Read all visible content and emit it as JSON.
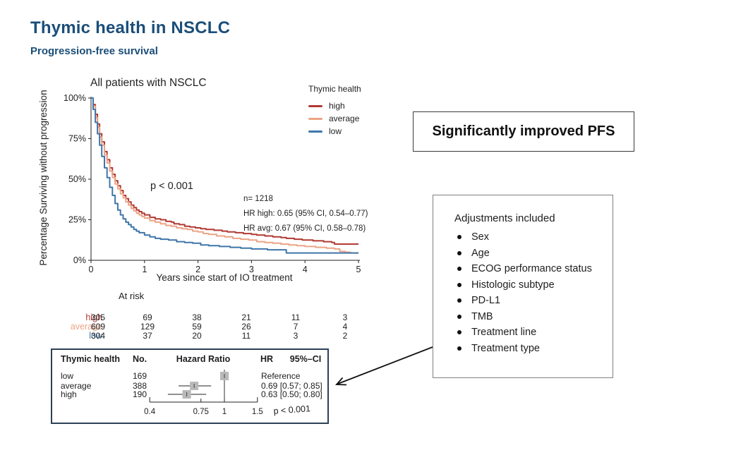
{
  "header": {
    "title": "Thymic health in NSCLC",
    "subtitle": "Progression-free survival"
  },
  "colors": {
    "heading_blue": "#1b4e79",
    "high": "#b13a33",
    "average": "#eca486",
    "low": "#3e76aa",
    "forest_border": "#2e4057"
  },
  "callouts": {
    "pfs_box": "Significantly improved PFS",
    "adjustments": {
      "title": "Adjustments included",
      "items": [
        "Sex",
        "Age",
        "ECOG performance status",
        "Histologic subtype",
        "PD-L1",
        "TMB",
        "Treatment line",
        "Treatment type"
      ]
    }
  },
  "at_risk": {
    "title": "At risk",
    "rows": [
      {
        "label": "high",
        "color": "#b13a33",
        "counts": [
          305,
          69,
          38,
          21,
          11,
          3
        ]
      },
      {
        "label": "average",
        "color": "#eca486",
        "counts": [
          609,
          129,
          59,
          26,
          7,
          4
        ]
      },
      {
        "label": "low",
        "color": "#3e76aa",
        "counts": [
          304,
          37,
          20,
          11,
          3,
          2
        ]
      }
    ]
  },
  "chart_data": [
    {
      "type": "line",
      "subtype": "kaplan-meier-step",
      "title": "All patients with NSCLC",
      "xlabel": "Years since start of IO treatment",
      "ylabel": "Percentage Surviving without progression",
      "xlim": [
        0,
        5
      ],
      "ylim": [
        0,
        100
      ],
      "grid": false,
      "x_ticks": [
        0,
        1,
        2,
        3,
        4,
        5
      ],
      "x_tick_labels": [
        "0",
        "1",
        "2",
        "3",
        "4",
        "5"
      ],
      "y_ticks": [
        0,
        25,
        50,
        75,
        100
      ],
      "y_tick_labels": [
        "0%",
        "25%",
        "50%",
        "75%",
        "100%"
      ],
      "legend_title": "Thymic health",
      "legend_position": "upper right, outside plot",
      "annotations": {
        "p_value": "p < 0.001",
        "n": "n= 1218",
        "hr_high": "HR high: 0.65 (95% CI, 0.54–0.77)",
        "hr_avg": "HR avg: 0.67 (95% CI, 0.58–0.78)"
      },
      "series": [
        {
          "name": "high",
          "color": "#b13a33",
          "points": [
            [
              0,
              100
            ],
            [
              0.04,
              96
            ],
            [
              0.08,
              90
            ],
            [
              0.12,
              84
            ],
            [
              0.16,
              78
            ],
            [
              0.2,
              73
            ],
            [
              0.25,
              67
            ],
            [
              0.3,
              62
            ],
            [
              0.35,
              57
            ],
            [
              0.4,
              53
            ],
            [
              0.45,
              49
            ],
            [
              0.5,
              46
            ],
            [
              0.55,
              43
            ],
            [
              0.6,
              40
            ],
            [
              0.65,
              38
            ],
            [
              0.7,
              36
            ],
            [
              0.75,
              34
            ],
            [
              0.8,
              32.5
            ],
            [
              0.85,
              31
            ],
            [
              0.9,
              30
            ],
            [
              0.95,
              29
            ],
            [
              1.0,
              28
            ],
            [
              1.1,
              26.5
            ],
            [
              1.2,
              25.5
            ],
            [
              1.3,
              25
            ],
            [
              1.4,
              24
            ],
            [
              1.5,
              23.5
            ],
            [
              1.55,
              22.5
            ],
            [
              1.65,
              22
            ],
            [
              1.75,
              21
            ],
            [
              1.85,
              20.5
            ],
            [
              1.95,
              20
            ],
            [
              2.05,
              19.5
            ],
            [
              2.15,
              19
            ],
            [
              2.3,
              18.5
            ],
            [
              2.45,
              18
            ],
            [
              2.55,
              17.5
            ],
            [
              2.7,
              17
            ],
            [
              2.85,
              16.5
            ],
            [
              3.0,
              16
            ],
            [
              3.1,
              15.5
            ],
            [
              3.25,
              15
            ],
            [
              3.4,
              14.5
            ],
            [
              3.55,
              14
            ],
            [
              3.65,
              13.5
            ],
            [
              3.8,
              13
            ],
            [
              3.95,
              12.5
            ],
            [
              4.15,
              12
            ],
            [
              4.35,
              11.5
            ],
            [
              4.5,
              11
            ],
            [
              4.55,
              10
            ],
            [
              5.0,
              10
            ]
          ]
        },
        {
          "name": "average",
          "color": "#eca486",
          "points": [
            [
              0,
              100
            ],
            [
              0.04,
              95
            ],
            [
              0.08,
              88
            ],
            [
              0.12,
              82
            ],
            [
              0.16,
              76
            ],
            [
              0.2,
              71
            ],
            [
              0.25,
              65
            ],
            [
              0.3,
              60
            ],
            [
              0.35,
              55
            ],
            [
              0.4,
              51
            ],
            [
              0.45,
              47
            ],
            [
              0.5,
              44
            ],
            [
              0.55,
              41
            ],
            [
              0.6,
              38.5
            ],
            [
              0.65,
              36
            ],
            [
              0.7,
              34
            ],
            [
              0.75,
              32
            ],
            [
              0.8,
              30.5
            ],
            [
              0.85,
              29
            ],
            [
              0.9,
              28
            ],
            [
              0.95,
              27
            ],
            [
              1.0,
              26
            ],
            [
              1.1,
              24.5
            ],
            [
              1.2,
              23.5
            ],
            [
              1.3,
              22.5
            ],
            [
              1.4,
              21.5
            ],
            [
              1.5,
              21
            ],
            [
              1.6,
              20
            ],
            [
              1.7,
              19.5
            ],
            [
              1.8,
              19
            ],
            [
              1.9,
              18
            ],
            [
              2.0,
              17.5
            ],
            [
              2.1,
              16.5
            ],
            [
              2.2,
              16
            ],
            [
              2.35,
              15
            ],
            [
              2.5,
              14.5
            ],
            [
              2.65,
              13.5
            ],
            [
              2.8,
              13
            ],
            [
              2.95,
              12.5
            ],
            [
              3.1,
              11.5
            ],
            [
              3.25,
              11
            ],
            [
              3.4,
              10.5
            ],
            [
              3.55,
              10
            ],
            [
              3.7,
              9.5
            ],
            [
              3.85,
              9
            ],
            [
              4.0,
              8.5
            ],
            [
              4.2,
              8
            ],
            [
              4.4,
              7.5
            ],
            [
              4.55,
              7
            ],
            [
              4.65,
              5.5
            ],
            [
              4.75,
              5
            ],
            [
              4.85,
              4.5
            ],
            [
              5.0,
              4.5
            ]
          ]
        },
        {
          "name": "low",
          "color": "#3e76aa",
          "points": [
            [
              0,
              100
            ],
            [
              0.04,
              93
            ],
            [
              0.08,
              85
            ],
            [
              0.12,
              78
            ],
            [
              0.16,
              71
            ],
            [
              0.2,
              64
            ],
            [
              0.25,
              57
            ],
            [
              0.3,
              51
            ],
            [
              0.35,
              45
            ],
            [
              0.4,
              40
            ],
            [
              0.45,
              35
            ],
            [
              0.5,
              31
            ],
            [
              0.55,
              28
            ],
            [
              0.6,
              25.5
            ],
            [
              0.65,
              23.5
            ],
            [
              0.7,
              22
            ],
            [
              0.75,
              20.5
            ],
            [
              0.8,
              19
            ],
            [
              0.85,
              18
            ],
            [
              0.9,
              17
            ],
            [
              1.0,
              15.5
            ],
            [
              1.1,
              14.5
            ],
            [
              1.2,
              13.5
            ],
            [
              1.3,
              13
            ],
            [
              1.45,
              12.5
            ],
            [
              1.6,
              11.5
            ],
            [
              1.75,
              11
            ],
            [
              1.9,
              10.5
            ],
            [
              2.05,
              9.5
            ],
            [
              2.2,
              9
            ],
            [
              2.4,
              8.5
            ],
            [
              2.6,
              8
            ],
            [
              2.8,
              7.5
            ],
            [
              3.0,
              7
            ],
            [
              3.3,
              6.5
            ],
            [
              3.65,
              4.5
            ],
            [
              5.0,
              4.5
            ]
          ]
        }
      ]
    },
    {
      "type": "forest",
      "columns": [
        "Thymic health",
        "No.",
        "Hazard Ratio",
        "HR",
        "95%–CI"
      ],
      "scale": "log",
      "axis_ticks": [
        0.4,
        0.75,
        1,
        1.5
      ],
      "p_value": "p < 0.001",
      "rows": [
        {
          "group": "low",
          "n": 169,
          "hr": 1.0,
          "ci_low": null,
          "ci_high": null,
          "ci_text": "Reference"
        },
        {
          "group": "average",
          "n": 388,
          "hr": 0.69,
          "ci_low": 0.57,
          "ci_high": 0.85,
          "ci_text": "0.69 [0.57; 0.85]"
        },
        {
          "group": "high",
          "n": 190,
          "hr": 0.63,
          "ci_low": 0.5,
          "ci_high": 0.8,
          "ci_text": "0.63 [0.50; 0.80]"
        }
      ]
    }
  ]
}
